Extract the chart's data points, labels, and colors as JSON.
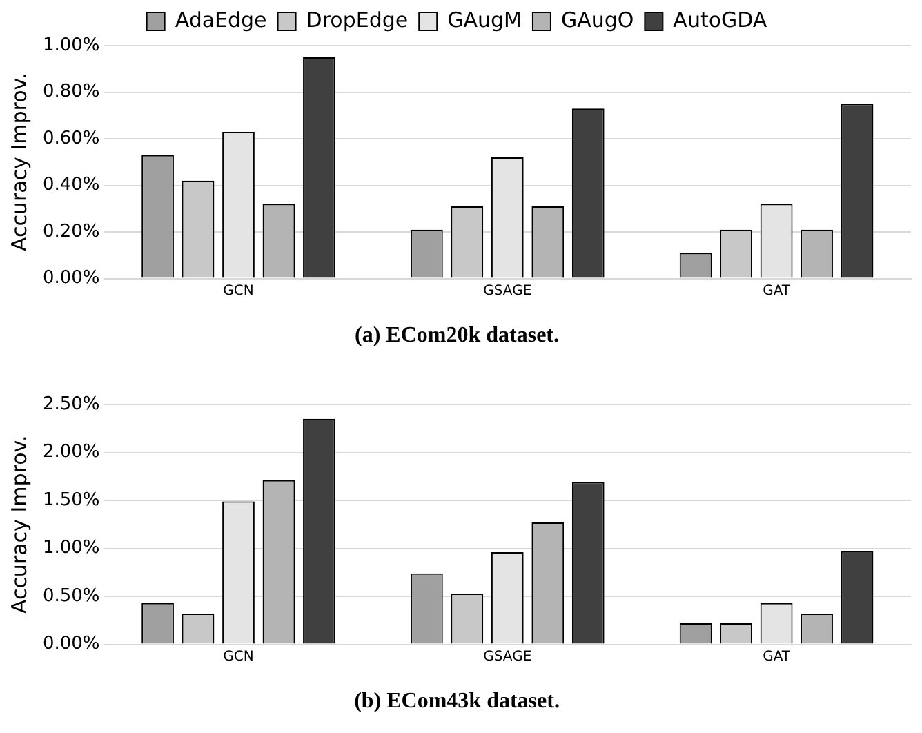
{
  "chart_data": [
    {
      "type": "bar",
      "title": "(a) ECom20k dataset.",
      "ylabel": "Accuracy Improv.",
      "categories": [
        "GCN",
        "GSAGE",
        "GAT"
      ],
      "series": [
        {
          "name": "AdaEdge",
          "color": "#a0a0a0",
          "values": [
            0.53,
            0.21,
            0.11
          ]
        },
        {
          "name": "DropEdge",
          "color": "#c8c8c8",
          "values": [
            0.42,
            0.31,
            0.21
          ]
        },
        {
          "name": "GAugM",
          "color": "#e4e4e4",
          "values": [
            0.63,
            0.52,
            0.32
          ]
        },
        {
          "name": "GAugO",
          "color": "#b4b4b4",
          "values": [
            0.32,
            0.31,
            0.21
          ]
        },
        {
          "name": "AutoGDA",
          "color": "#404040",
          "values": [
            0.95,
            0.73,
            0.75
          ]
        }
      ],
      "ylim": [
        0,
        1
      ],
      "yticks": [
        {
          "value": 0,
          "label": "0.00%"
        },
        {
          "value": 0.2,
          "label": "0.20%"
        },
        {
          "value": 0.4,
          "label": "0.40%"
        },
        {
          "value": 0.6,
          "label": "0.60%"
        },
        {
          "value": 0.8,
          "label": "0.80%"
        },
        {
          "value": 1,
          "label": "1.00%"
        }
      ],
      "grid": "y",
      "legend": "top"
    },
    {
      "type": "bar",
      "title": "(b) ECom43k dataset.",
      "ylabel": "Accuracy Improv.",
      "categories": [
        "GCN",
        "GSAGE",
        "GAT"
      ],
      "series": [
        {
          "color": "#a0a0a0",
          "values": [
            0.43,
            0.74,
            0.22
          ]
        },
        {
          "color": "#c8c8c8",
          "values": [
            0.32,
            0.53,
            0.22
          ]
        },
        {
          "color": "#e4e4e4",
          "values": [
            1.49,
            0.96,
            0.43
          ]
        },
        {
          "color": "#b4b4b4",
          "values": [
            1.71,
            1.27,
            0.32
          ]
        },
        {
          "color": "#404040",
          "values": [
            2.35,
            1.69,
            0.97
          ]
        }
      ],
      "ylim": [
        0,
        2.5
      ],
      "yticks": [
        {
          "value": 0,
          "label": "0.00%"
        },
        {
          "value": 0.5,
          "label": "0.50%"
        },
        {
          "value": 1,
          "label": "1.00%"
        },
        {
          "value": 1.5,
          "label": "1.50%"
        },
        {
          "value": 2,
          "label": "2.00%"
        },
        {
          "value": 2.5,
          "label": "2.50%"
        }
      ],
      "grid": "y"
    }
  ]
}
